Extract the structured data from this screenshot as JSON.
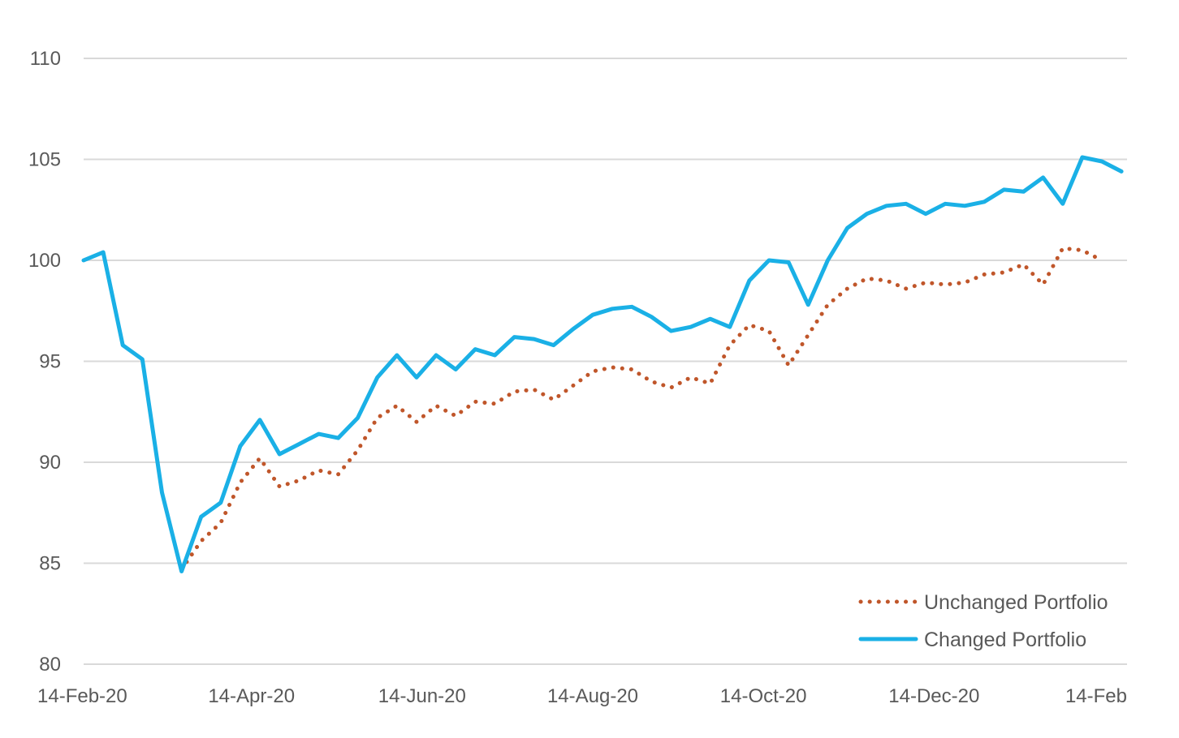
{
  "chart_data": {
    "type": "line",
    "title": "",
    "xlabel": "",
    "ylabel": "",
    "ylim": [
      80,
      110
    ],
    "yticks": [
      "110",
      "105",
      "100",
      "95",
      "90",
      "85",
      "80"
    ],
    "xlim": [
      "2020-02-14",
      "2021-02-21"
    ],
    "xticks": [
      {
        "label": "14-Feb-20",
        "date": "2020-02-14"
      },
      {
        "label": "14-Apr-20",
        "date": "2020-04-14"
      },
      {
        "label": "14-Jun-20",
        "date": "2020-06-14"
      },
      {
        "label": "14-Aug-20",
        "date": "2020-08-14"
      },
      {
        "label": "14-Oct-20",
        "date": "2020-10-14"
      },
      {
        "label": "14-Dec-20",
        "date": "2020-12-14"
      },
      {
        "label": "14-Feb",
        "date": "2021-02-14"
      }
    ],
    "grid": true,
    "legend_position": "bottom-right",
    "colors": {
      "unchanged": "#c0562a",
      "changed": "#1ab0e6",
      "grid": "#d9d9d9",
      "text": "#595959"
    },
    "x": [
      "2020-02-14",
      "2020-02-21",
      "2020-02-28",
      "2020-03-06",
      "2020-03-13",
      "2020-03-20",
      "2020-03-27",
      "2020-04-03",
      "2020-04-10",
      "2020-04-17",
      "2020-04-24",
      "2020-05-01",
      "2020-05-08",
      "2020-05-15",
      "2020-05-22",
      "2020-05-29",
      "2020-06-05",
      "2020-06-12",
      "2020-06-19",
      "2020-06-26",
      "2020-07-03",
      "2020-07-10",
      "2020-07-17",
      "2020-07-24",
      "2020-07-31",
      "2020-08-07",
      "2020-08-14",
      "2020-08-21",
      "2020-08-28",
      "2020-09-04",
      "2020-09-11",
      "2020-09-18",
      "2020-09-25",
      "2020-10-02",
      "2020-10-09",
      "2020-10-16",
      "2020-10-23",
      "2020-10-30",
      "2020-11-06",
      "2020-11-13",
      "2020-11-20",
      "2020-11-27",
      "2020-12-04",
      "2020-12-11",
      "2020-12-18",
      "2020-12-25",
      "2021-01-01",
      "2021-01-08",
      "2021-01-15",
      "2021-01-22",
      "2021-01-29",
      "2021-02-05",
      "2021-02-12",
      "2021-02-19"
    ],
    "series": [
      {
        "name": "Unchanged Portfolio",
        "style": "dotted",
        "values": [
          null,
          null,
          null,
          null,
          null,
          84.7,
          86.1,
          87.0,
          89.0,
          90.2,
          88.8,
          89.1,
          89.6,
          89.4,
          90.6,
          92.2,
          92.8,
          92.0,
          92.8,
          92.3,
          93.0,
          92.9,
          93.5,
          93.6,
          93.1,
          93.8,
          94.5,
          94.7,
          94.6,
          94.0,
          93.7,
          94.2,
          93.9,
          95.8,
          96.8,
          96.5,
          94.8,
          96.3,
          97.8,
          98.6,
          99.1,
          99.0,
          98.6,
          98.9,
          98.8,
          98.9,
          99.3,
          99.4,
          99.8,
          98.8,
          100.6,
          100.5,
          100.0,
          null
        ]
      },
      {
        "name": "Changed Portfolio",
        "style": "solid",
        "values": [
          100.0,
          100.4,
          95.8,
          95.1,
          88.5,
          84.6,
          87.3,
          88.0,
          90.8,
          92.1,
          90.4,
          90.9,
          91.4,
          91.2,
          92.2,
          94.2,
          95.3,
          94.2,
          95.3,
          94.6,
          95.6,
          95.3,
          96.2,
          96.1,
          95.8,
          96.6,
          97.3,
          97.6,
          97.7,
          97.2,
          96.5,
          96.7,
          97.1,
          96.7,
          99.0,
          100.0,
          99.9,
          97.8,
          100.0,
          101.6,
          102.3,
          102.7,
          102.8,
          102.3,
          102.8,
          102.7,
          102.9,
          103.5,
          103.4,
          104.1,
          102.8,
          105.1,
          104.9,
          104.4
        ]
      }
    ]
  }
}
